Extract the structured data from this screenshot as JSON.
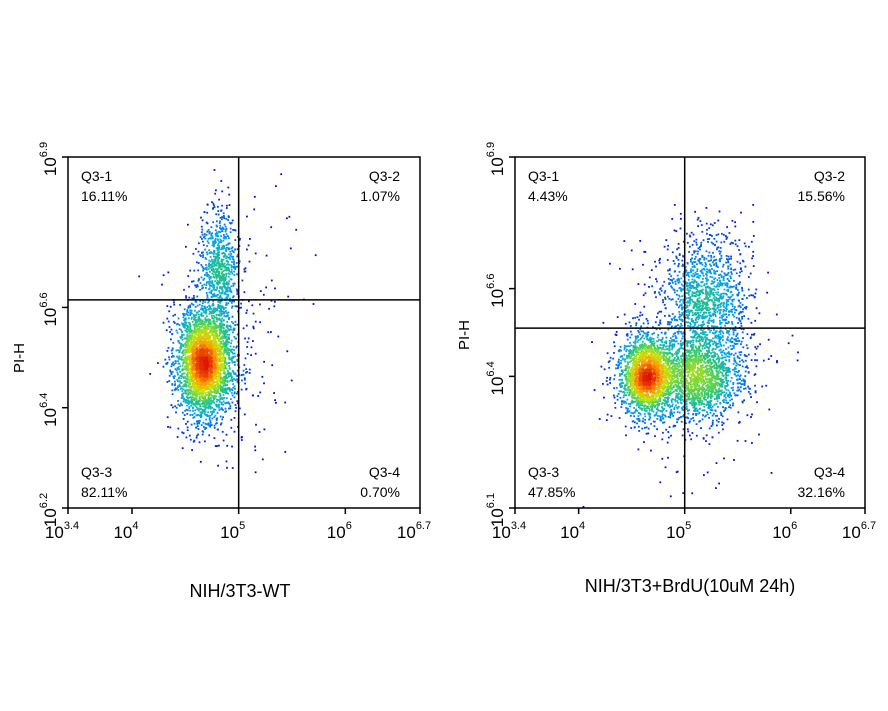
{
  "chart_data": [
    {
      "type": "scatter",
      "title": "NIH/3T3-WT",
      "xlabel": "",
      "ylabel": "PI-H",
      "xscale": "log",
      "yscale": "log",
      "x_ticks": [
        {
          "base": "10",
          "exp": "3.4"
        },
        {
          "base": "10",
          "exp": "4"
        },
        {
          "base": "10",
          "exp": "5"
        },
        {
          "base": "10",
          "exp": "6"
        },
        {
          "base": "10",
          "exp": "6.7"
        }
      ],
      "y_ticks": [
        {
          "base": "10",
          "exp": "6.2"
        },
        {
          "base": "10",
          "exp": "6.4"
        },
        {
          "base": "10",
          "exp": "6.6"
        },
        {
          "base": "10",
          "exp": "6.9"
        }
      ],
      "xlim_log10": [
        3.4,
        6.7
      ],
      "ylim_log10": [
        6.2,
        6.9
      ],
      "gate_log10": {
        "x": 5.0,
        "y": 6.615
      },
      "quadrants": [
        {
          "label": "Q3-1",
          "value": "16.11%",
          "position": "top-left"
        },
        {
          "label": "Q3-2",
          "value": "1.07%",
          "position": "top-right"
        },
        {
          "label": "Q3-3",
          "value": "82.11%",
          "position": "bottom-left"
        },
        {
          "label": "Q3-4",
          "value": "0.70%",
          "position": "bottom-right"
        }
      ],
      "populations_log10": [
        {
          "cx": 4.68,
          "cy": 6.49,
          "sx": 0.13,
          "sy": 0.055,
          "n": 3200
        },
        {
          "cx": 4.82,
          "cy": 6.68,
          "sx": 0.09,
          "sy": 0.06,
          "n": 700
        },
        {
          "cx": 4.9,
          "cy": 6.55,
          "sx": 0.28,
          "sy": 0.13,
          "n": 250
        }
      ]
    },
    {
      "type": "scatter",
      "title": "NIH/3T3+BrdU(10uM 24h)",
      "xlabel": "",
      "ylabel": "PI-H",
      "xscale": "log",
      "yscale": "log",
      "x_ticks": [
        {
          "base": "10",
          "exp": "3.4"
        },
        {
          "base": "10",
          "exp": "4"
        },
        {
          "base": "10",
          "exp": "5"
        },
        {
          "base": "10",
          "exp": "6"
        },
        {
          "base": "10",
          "exp": "6.7"
        }
      ],
      "y_ticks": [
        {
          "base": "10",
          "exp": "6.1"
        },
        {
          "base": "10",
          "exp": "6.4"
        },
        {
          "base": "10",
          "exp": "6.6"
        },
        {
          "base": "10",
          "exp": "6.9"
        }
      ],
      "xlim_log10": [
        3.4,
        6.7
      ],
      "ylim_log10": [
        6.1,
        6.9
      ],
      "gate_log10": {
        "x": 5.0,
        "y": 6.51
      },
      "quadrants": [
        {
          "label": "Q3-1",
          "value": "4.43%",
          "position": "top-left"
        },
        {
          "label": "Q3-2",
          "value": "15.56%",
          "position": "top-right"
        },
        {
          "label": "Q3-3",
          "value": "47.85%",
          "position": "bottom-left"
        },
        {
          "label": "Q3-4",
          "value": "32.16%",
          "position": "bottom-right"
        }
      ],
      "populations_log10": [
        {
          "cx": 4.64,
          "cy": 6.4,
          "sx": 0.12,
          "sy": 0.045,
          "n": 2000
        },
        {
          "cx": 5.12,
          "cy": 6.4,
          "sx": 0.22,
          "sy": 0.05,
          "n": 1800
        },
        {
          "cx": 5.2,
          "cy": 6.58,
          "sx": 0.2,
          "sy": 0.07,
          "n": 1200
        },
        {
          "cx": 5.0,
          "cy": 6.45,
          "sx": 0.4,
          "sy": 0.14,
          "n": 300
        }
      ]
    }
  ]
}
